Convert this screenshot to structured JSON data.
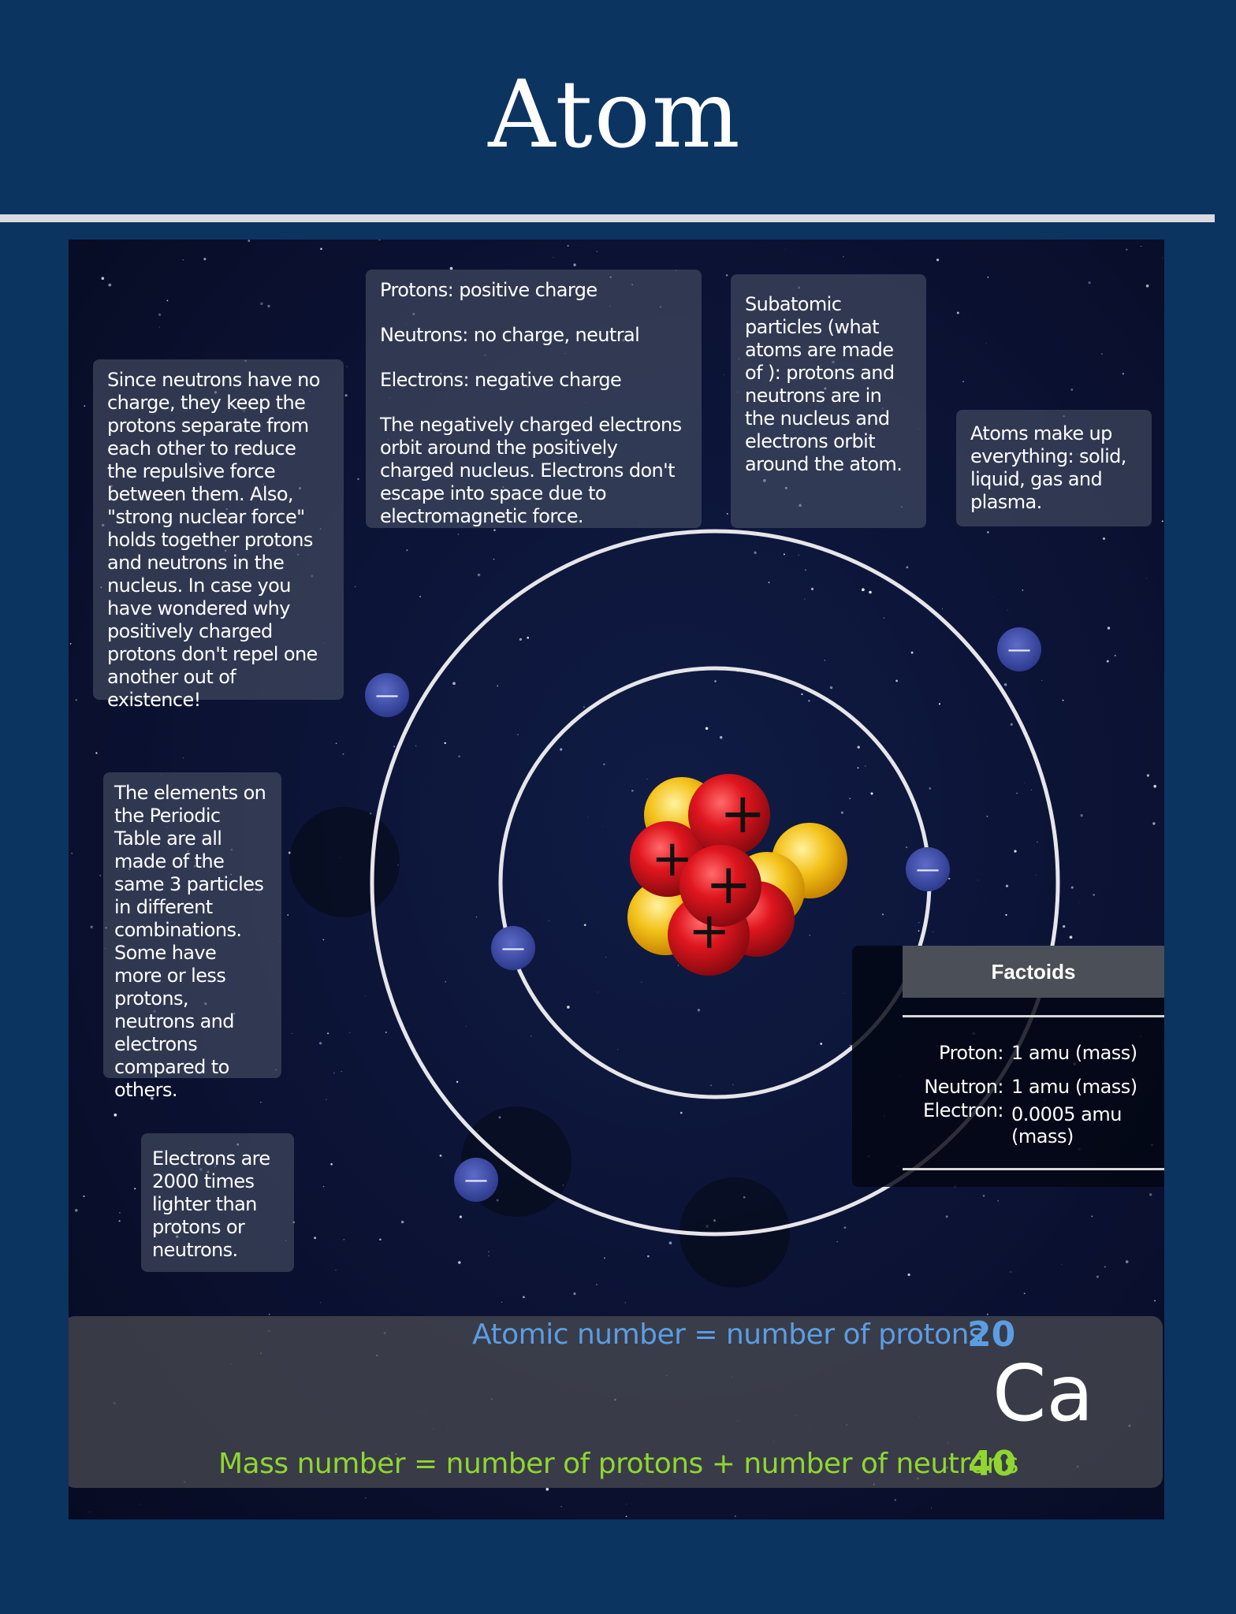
{
  "title": "Atom",
  "boxes": {
    "neutrons": "Since neutrons have no charge, they keep the protons separate from each other to reduce the repulsive force between them. Also, \"strong nuclear force\" holds together protons and neutrons in the nucleus. In case you have wondered why positively charged protons don't repel one another out of existence!",
    "charges": {
      "protons": "Protons: positive charge",
      "neutrons": "Neutrons: no charge, neutral",
      "electrons": "Electrons: negative charge",
      "orbit": "The negatively charged electrons orbit around the positively charged nucleus. Electrons don't escape into space due to electromagnetic force."
    },
    "subatomic": "Subatomic particles (what atoms are made of ): protons and neutrons are in the nucleus and electrons orbit around the atom.",
    "everything": "Atoms make up everything: solid, liquid, gas and plasma.",
    "elements": "The elements on the Periodic Table are all made of the same 3 particles in different combinations. Some have more or less protons, neutrons and electrons compared to others.",
    "lighter": "Electrons are 2000 times lighter than protons or neutrons."
  },
  "factoids": {
    "heading": "Factoids",
    "rows": [
      {
        "label": "Proton:",
        "value": "1 amu (mass)"
      },
      {
        "label": "Neutron:",
        "value": "1 amu (mass)"
      },
      {
        "label": "Electron:",
        "value": "0.0005 amu (mass)"
      }
    ]
  },
  "atomic": {
    "label": "Atomic number = number of protons",
    "value": "20",
    "color": "#5b9de3"
  },
  "mass": {
    "label": "Mass number = number of protons + number of neutrons",
    "value": "40",
    "color": "#8fd630"
  },
  "element_symbol": "Ca",
  "diagram": {
    "proton_symbol": "+",
    "electron_symbol": "—",
    "colors": {
      "proton": "#e0161f",
      "neutron": "#f3c21a",
      "electron": "#3b4aa6",
      "orbit": "#e6e6ea",
      "background": "#0b3461"
    }
  }
}
